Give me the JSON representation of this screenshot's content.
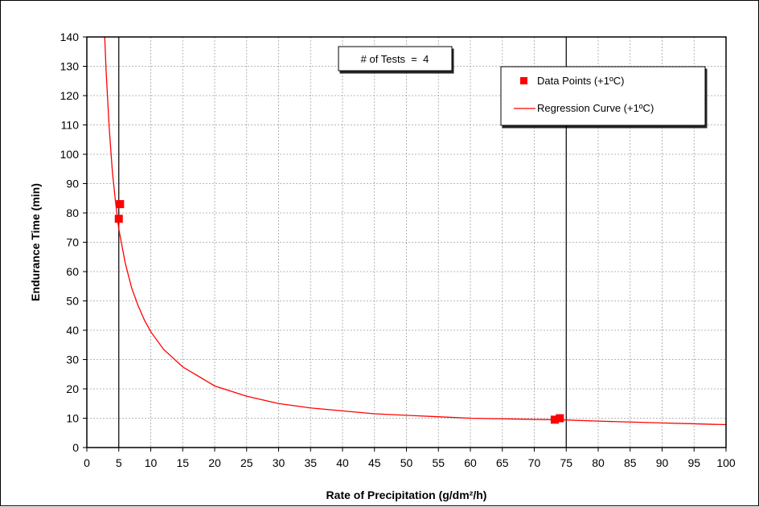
{
  "chart_data": {
    "type": "scatter",
    "title": "",
    "xlabel": "Rate of Precipitation (g/dm²/h)",
    "ylabel": "Endurance Time (min)",
    "xlim": [
      0,
      100
    ],
    "ylim": [
      0,
      140
    ],
    "x_ticks": [
      "0",
      "5",
      "10",
      "15",
      "20",
      "25",
      "30",
      "35",
      "40",
      "45",
      "50",
      "55",
      "60",
      "65",
      "70",
      "75",
      "80",
      "85",
      "90",
      "95",
      "100"
    ],
    "y_ticks": [
      "0",
      "10",
      "20",
      "30",
      "40",
      "50",
      "60",
      "70",
      "80",
      "90",
      "100",
      "110",
      "120",
      "130",
      "140"
    ],
    "grid": true,
    "reference_lines_x": [
      5,
      75
    ],
    "annotation": "# of Tests  =  4",
    "legend": {
      "placement": "top-right",
      "entries": [
        "Data Points (+1ºC)",
        "Regression Curve (+1ºC)"
      ]
    },
    "series": [
      {
        "name": "Data Points (+1ºC)",
        "kind": "points",
        "color": "#ff0000",
        "points": [
          {
            "x": 5.0,
            "y": 78.0
          },
          {
            "x": 5.2,
            "y": 83.0
          },
          {
            "x": 73.2,
            "y": 9.5
          },
          {
            "x": 74.0,
            "y": 10.0
          }
        ]
      },
      {
        "name": "Regression Curve (+1ºC)",
        "kind": "line",
        "color": "#ff0000",
        "points": [
          {
            "x": 2.8,
            "y": 140.0
          },
          {
            "x": 3.0,
            "y": 129.0
          },
          {
            "x": 3.5,
            "y": 109.0
          },
          {
            "x": 4.0,
            "y": 94.0
          },
          {
            "x": 4.5,
            "y": 83.5
          },
          {
            "x": 5.0,
            "y": 74.5
          },
          {
            "x": 6.0,
            "y": 63.0
          },
          {
            "x": 7.0,
            "y": 54.5
          },
          {
            "x": 8.0,
            "y": 48.5
          },
          {
            "x": 9.0,
            "y": 43.5
          },
          {
            "x": 10.0,
            "y": 39.5
          },
          {
            "x": 12.0,
            "y": 33.5
          },
          {
            "x": 15.0,
            "y": 27.5
          },
          {
            "x": 20.0,
            "y": 21.0
          },
          {
            "x": 25.0,
            "y": 17.5
          },
          {
            "x": 30.0,
            "y": 15.0
          },
          {
            "x": 35.0,
            "y": 13.5
          },
          {
            "x": 40.0,
            "y": 12.5
          },
          {
            "x": 45.0,
            "y": 11.5
          },
          {
            "x": 50.0,
            "y": 11.0
          },
          {
            "x": 55.0,
            "y": 10.5
          },
          {
            "x": 60.0,
            "y": 10.0
          },
          {
            "x": 65.0,
            "y": 9.8
          },
          {
            "x": 70.0,
            "y": 9.6
          },
          {
            "x": 75.0,
            "y": 9.4
          },
          {
            "x": 80.0,
            "y": 9.0
          },
          {
            "x": 85.0,
            "y": 8.7
          },
          {
            "x": 90.0,
            "y": 8.4
          },
          {
            "x": 95.0,
            "y": 8.1
          },
          {
            "x": 100.0,
            "y": 7.8
          }
        ]
      }
    ]
  }
}
